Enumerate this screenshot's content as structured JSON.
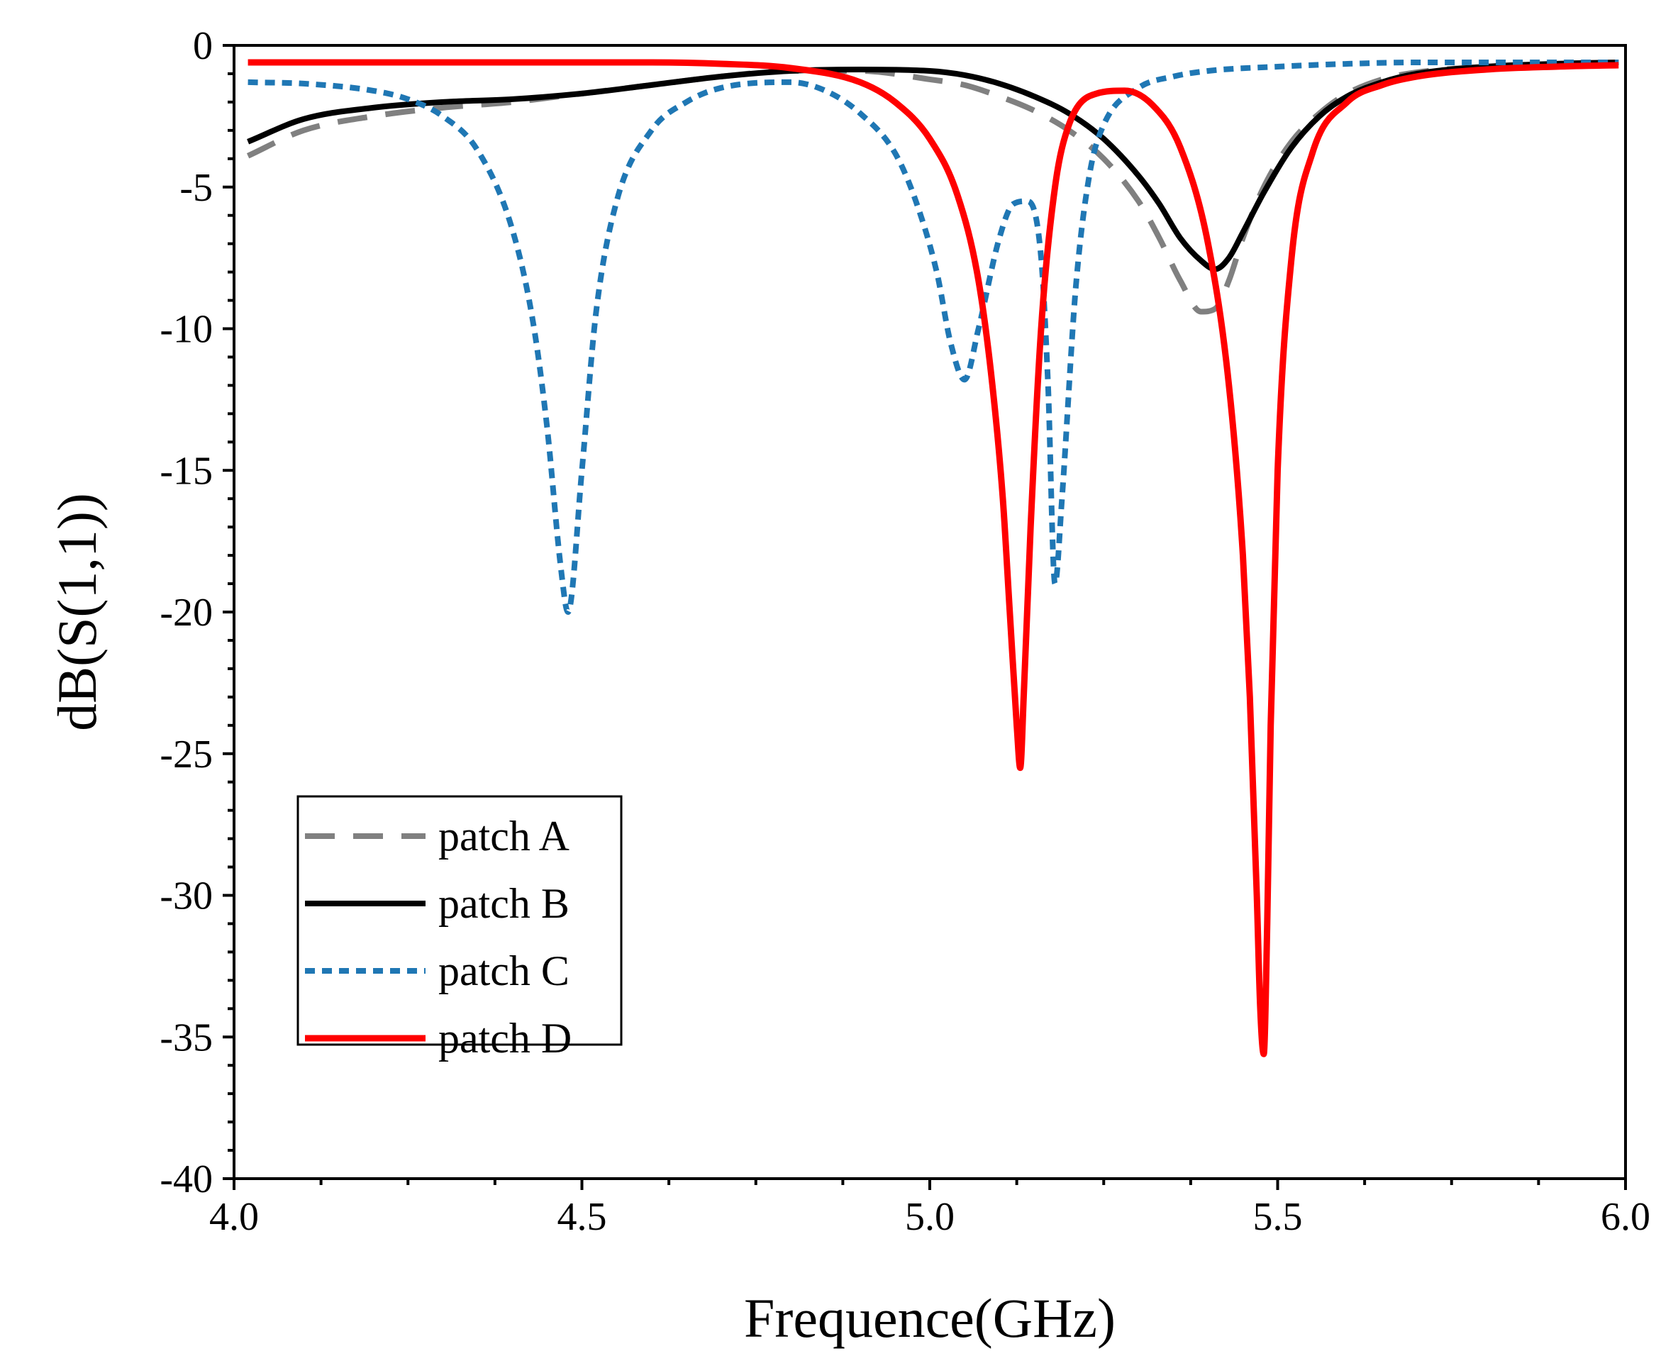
{
  "chart_data": {
    "type": "line",
    "title": "",
    "xlabel": "Frequence(GHz)",
    "ylabel": "dB(S(1,1))",
    "xlim": [
      4.0,
      6.0
    ],
    "ylim": [
      -40,
      0
    ],
    "xticks": [
      4.0,
      4.5,
      5.0,
      5.5,
      6.0
    ],
    "xtick_labels": [
      "4.0",
      "4.5",
      "5.0",
      "5.5",
      "6.0"
    ],
    "yticks": [
      0,
      -5,
      -10,
      -15,
      -20,
      -25,
      -30,
      -35,
      -40
    ],
    "ytick_labels": [
      "0",
      "-5",
      "-10",
      "-15",
      "-20",
      "-25",
      "-30",
      "-35",
      "-40"
    ],
    "grid": false,
    "legend_position": "bottom-left",
    "series": [
      {
        "name": "patch A",
        "color": "#808080",
        "style": "dashed",
        "x": [
          4.02,
          4.1,
          4.2,
          4.3,
          4.4,
          4.5,
          4.6,
          4.7,
          4.8,
          4.9,
          5.0,
          5.05,
          5.1,
          5.15,
          5.2,
          5.25,
          5.3,
          5.33,
          5.36,
          5.39,
          5.41,
          5.43,
          5.45,
          5.48,
          5.52,
          5.56,
          5.6,
          5.65,
          5.7,
          5.8,
          5.9,
          5.99
        ],
        "y": [
          -3.9,
          -3.0,
          -2.5,
          -2.2,
          -2.0,
          -1.7,
          -1.4,
          -1.1,
          -0.9,
          -0.9,
          -1.2,
          -1.4,
          -1.8,
          -2.3,
          -3.0,
          -4.0,
          -5.5,
          -6.8,
          -8.3,
          -9.4,
          -9.3,
          -8.3,
          -6.8,
          -5.0,
          -3.4,
          -2.4,
          -1.7,
          -1.2,
          -0.95,
          -0.75,
          -0.65,
          -0.6
        ]
      },
      {
        "name": "patch B",
        "color": "#000000",
        "style": "solid",
        "x": [
          4.02,
          4.1,
          4.2,
          4.3,
          4.4,
          4.5,
          4.6,
          4.7,
          4.8,
          4.9,
          5.0,
          5.05,
          5.1,
          5.15,
          5.2,
          5.25,
          5.3,
          5.33,
          5.36,
          5.39,
          5.41,
          5.43,
          5.45,
          5.48,
          5.52,
          5.56,
          5.6,
          5.65,
          5.7,
          5.8,
          5.9,
          5.99
        ],
        "y": [
          -3.4,
          -2.6,
          -2.2,
          -2.0,
          -1.9,
          -1.7,
          -1.4,
          -1.1,
          -0.9,
          -0.85,
          -0.9,
          -1.05,
          -1.35,
          -1.8,
          -2.4,
          -3.3,
          -4.6,
          -5.6,
          -6.8,
          -7.6,
          -7.9,
          -7.5,
          -6.6,
          -5.2,
          -3.6,
          -2.5,
          -1.8,
          -1.3,
          -1.0,
          -0.75,
          -0.65,
          -0.6
        ]
      },
      {
        "name": "patch C",
        "color": "#1f77b4",
        "style": "dotted",
        "x": [
          4.02,
          4.1,
          4.2,
          4.25,
          4.3,
          4.35,
          4.4,
          4.43,
          4.45,
          4.47,
          4.48,
          4.5,
          4.52,
          4.55,
          4.6,
          4.65,
          4.7,
          4.8,
          4.85,
          4.9,
          4.95,
          4.98,
          5.01,
          5.03,
          5.05,
          5.07,
          5.1,
          5.12,
          5.14,
          5.16,
          5.17,
          5.18,
          5.19,
          5.21,
          5.23,
          5.25,
          5.3,
          5.35,
          5.4,
          5.5,
          5.6,
          5.7,
          5.8,
          5.9,
          5.99
        ],
        "y": [
          -1.3,
          -1.35,
          -1.6,
          -1.9,
          -2.5,
          -3.7,
          -6.5,
          -9.8,
          -13.5,
          -18.5,
          -20.0,
          -15.0,
          -9.5,
          -5.5,
          -3.0,
          -2.0,
          -1.5,
          -1.3,
          -1.6,
          -2.4,
          -3.8,
          -5.5,
          -8.0,
          -10.5,
          -11.8,
          -10.0,
          -6.8,
          -5.6,
          -5.5,
          -7.5,
          -12.0,
          -19.0,
          -16.0,
          -8.5,
          -4.5,
          -2.8,
          -1.5,
          -1.1,
          -0.9,
          -0.75,
          -0.65,
          -0.6,
          -0.6,
          -0.6,
          -0.6
        ]
      },
      {
        "name": "patch D",
        "color": "#ff0000",
        "style": "solid",
        "x": [
          4.02,
          4.2,
          4.4,
          4.6,
          4.7,
          4.8,
          4.9,
          4.95,
          5.0,
          5.04,
          5.07,
          5.09,
          5.105,
          5.115,
          5.125,
          5.13,
          5.135,
          5.145,
          5.16,
          5.18,
          5.2,
          5.24,
          5.28,
          5.32,
          5.36,
          5.4,
          5.43,
          5.45,
          5.46,
          5.47,
          5.475,
          5.48,
          5.485,
          5.49,
          5.5,
          5.52,
          5.55,
          5.6,
          5.65,
          5.7,
          5.8,
          5.9,
          5.99
        ],
        "y": [
          -0.6,
          -0.6,
          -0.6,
          -0.6,
          -0.65,
          -0.8,
          -1.3,
          -2.0,
          -3.3,
          -5.3,
          -8.3,
          -12.0,
          -16.0,
          -20.0,
          -24.0,
          -25.5,
          -23.0,
          -17.0,
          -10.0,
          -5.0,
          -2.8,
          -1.7,
          -1.6,
          -2.1,
          -3.6,
          -7.0,
          -12.0,
          -18.0,
          -23.0,
          -30.0,
          -34.0,
          -35.6,
          -31.0,
          -24.0,
          -15.0,
          -7.5,
          -3.8,
          -2.0,
          -1.4,
          -1.1,
          -0.85,
          -0.75,
          -0.7
        ]
      }
    ]
  }
}
